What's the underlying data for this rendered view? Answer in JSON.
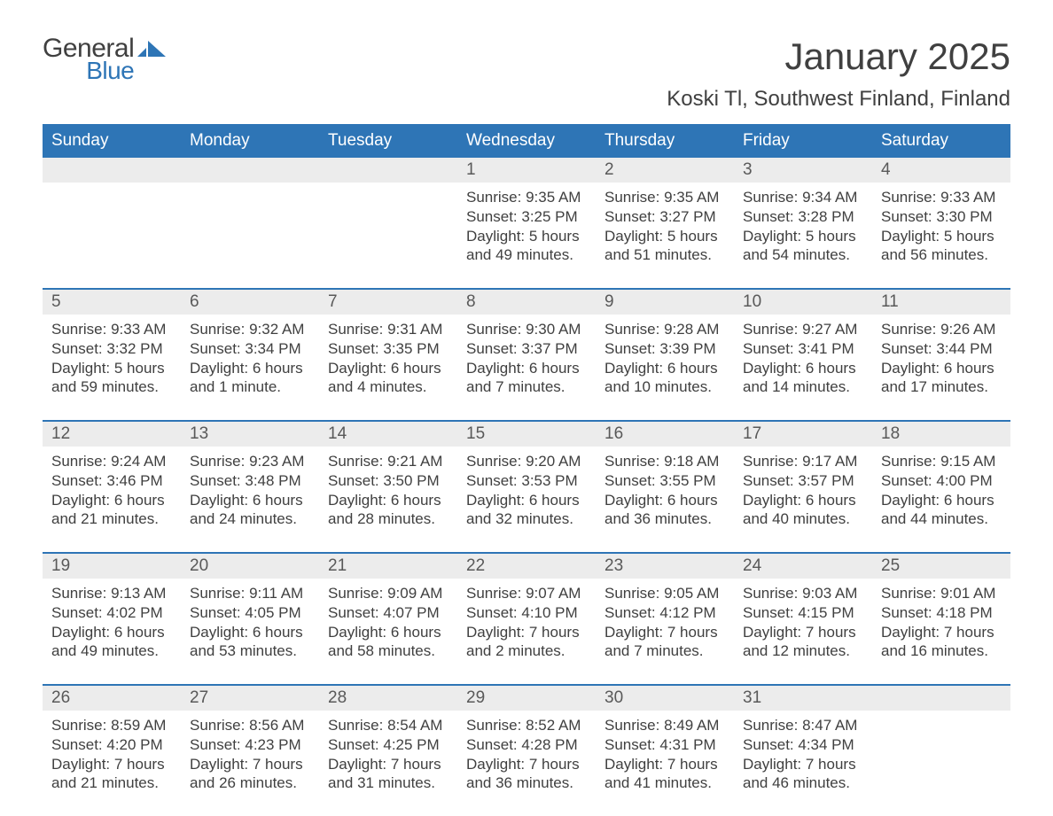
{
  "logo": {
    "word1": "General",
    "word2": "Blue"
  },
  "colors": {
    "header_bg": "#2e75b6",
    "header_text": "#ffffff",
    "daynum_bg": "#ececec",
    "text": "#404040",
    "rule": "#2e75b6",
    "logo_blue": "#2e75b6"
  },
  "title": "January 2025",
  "location": "Koski Tl, Southwest Finland, Finland",
  "day_headers": [
    "Sunday",
    "Monday",
    "Tuesday",
    "Wednesday",
    "Thursday",
    "Friday",
    "Saturday"
  ],
  "weeks": [
    [
      null,
      null,
      null,
      {
        "n": "1",
        "sunrise": "9:35 AM",
        "sunset": "3:25 PM",
        "daylight": "5 hours and 49 minutes."
      },
      {
        "n": "2",
        "sunrise": "9:35 AM",
        "sunset": "3:27 PM",
        "daylight": "5 hours and 51 minutes."
      },
      {
        "n": "3",
        "sunrise": "9:34 AM",
        "sunset": "3:28 PM",
        "daylight": "5 hours and 54 minutes."
      },
      {
        "n": "4",
        "sunrise": "9:33 AM",
        "sunset": "3:30 PM",
        "daylight": "5 hours and 56 minutes."
      }
    ],
    [
      {
        "n": "5",
        "sunrise": "9:33 AM",
        "sunset": "3:32 PM",
        "daylight": "5 hours and 59 minutes."
      },
      {
        "n": "6",
        "sunrise": "9:32 AM",
        "sunset": "3:34 PM",
        "daylight": "6 hours and 1 minute."
      },
      {
        "n": "7",
        "sunrise": "9:31 AM",
        "sunset": "3:35 PM",
        "daylight": "6 hours and 4 minutes."
      },
      {
        "n": "8",
        "sunrise": "9:30 AM",
        "sunset": "3:37 PM",
        "daylight": "6 hours and 7 minutes."
      },
      {
        "n": "9",
        "sunrise": "9:28 AM",
        "sunset": "3:39 PM",
        "daylight": "6 hours and 10 minutes."
      },
      {
        "n": "10",
        "sunrise": "9:27 AM",
        "sunset": "3:41 PM",
        "daylight": "6 hours and 14 minutes."
      },
      {
        "n": "11",
        "sunrise": "9:26 AM",
        "sunset": "3:44 PM",
        "daylight": "6 hours and 17 minutes."
      }
    ],
    [
      {
        "n": "12",
        "sunrise": "9:24 AM",
        "sunset": "3:46 PM",
        "daylight": "6 hours and 21 minutes."
      },
      {
        "n": "13",
        "sunrise": "9:23 AM",
        "sunset": "3:48 PM",
        "daylight": "6 hours and 24 minutes."
      },
      {
        "n": "14",
        "sunrise": "9:21 AM",
        "sunset": "3:50 PM",
        "daylight": "6 hours and 28 minutes."
      },
      {
        "n": "15",
        "sunrise": "9:20 AM",
        "sunset": "3:53 PM",
        "daylight": "6 hours and 32 minutes."
      },
      {
        "n": "16",
        "sunrise": "9:18 AM",
        "sunset": "3:55 PM",
        "daylight": "6 hours and 36 minutes."
      },
      {
        "n": "17",
        "sunrise": "9:17 AM",
        "sunset": "3:57 PM",
        "daylight": "6 hours and 40 minutes."
      },
      {
        "n": "18",
        "sunrise": "9:15 AM",
        "sunset": "4:00 PM",
        "daylight": "6 hours and 44 minutes."
      }
    ],
    [
      {
        "n": "19",
        "sunrise": "9:13 AM",
        "sunset": "4:02 PM",
        "daylight": "6 hours and 49 minutes."
      },
      {
        "n": "20",
        "sunrise": "9:11 AM",
        "sunset": "4:05 PM",
        "daylight": "6 hours and 53 minutes."
      },
      {
        "n": "21",
        "sunrise": "9:09 AM",
        "sunset": "4:07 PM",
        "daylight": "6 hours and 58 minutes."
      },
      {
        "n": "22",
        "sunrise": "9:07 AM",
        "sunset": "4:10 PM",
        "daylight": "7 hours and 2 minutes."
      },
      {
        "n": "23",
        "sunrise": "9:05 AM",
        "sunset": "4:12 PM",
        "daylight": "7 hours and 7 minutes."
      },
      {
        "n": "24",
        "sunrise": "9:03 AM",
        "sunset": "4:15 PM",
        "daylight": "7 hours and 12 minutes."
      },
      {
        "n": "25",
        "sunrise": "9:01 AM",
        "sunset": "4:18 PM",
        "daylight": "7 hours and 16 minutes."
      }
    ],
    [
      {
        "n": "26",
        "sunrise": "8:59 AM",
        "sunset": "4:20 PM",
        "daylight": "7 hours and 21 minutes."
      },
      {
        "n": "27",
        "sunrise": "8:56 AM",
        "sunset": "4:23 PM",
        "daylight": "7 hours and 26 minutes."
      },
      {
        "n": "28",
        "sunrise": "8:54 AM",
        "sunset": "4:25 PM",
        "daylight": "7 hours and 31 minutes."
      },
      {
        "n": "29",
        "sunrise": "8:52 AM",
        "sunset": "4:28 PM",
        "daylight": "7 hours and 36 minutes."
      },
      {
        "n": "30",
        "sunrise": "8:49 AM",
        "sunset": "4:31 PM",
        "daylight": "7 hours and 41 minutes."
      },
      {
        "n": "31",
        "sunrise": "8:47 AM",
        "sunset": "4:34 PM",
        "daylight": "7 hours and 46 minutes."
      },
      null
    ]
  ],
  "labels": {
    "sunrise_prefix": "Sunrise: ",
    "sunset_prefix": "Sunset: ",
    "daylight_prefix": "Daylight: "
  },
  "typography": {
    "title_fontsize": 42,
    "location_fontsize": 24,
    "header_fontsize": 19,
    "daynum_fontsize": 19,
    "body_fontsize": 17
  }
}
